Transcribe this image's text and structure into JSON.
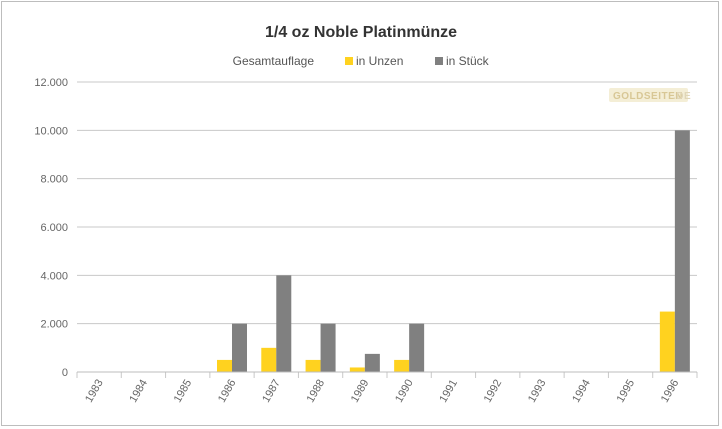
{
  "chart_data": {
    "type": "bar",
    "title": "1/4 oz Noble Platinmünze",
    "legend": {
      "title": "Gesamtauflage",
      "placement": "top"
    },
    "categories": [
      "1983",
      "1984",
      "1985",
      "1986",
      "1987",
      "1988",
      "1989",
      "1990",
      "1991",
      "1992",
      "1993",
      "1994",
      "1995",
      "1996"
    ],
    "series": [
      {
        "name": "in Unzen",
        "color": "#ffd21f",
        "values": [
          0,
          0,
          0,
          500,
          1000,
          500,
          187.5,
          500,
          0,
          0,
          0,
          0,
          0,
          2500
        ]
      },
      {
        "name": "in Stück",
        "color": "#808080",
        "values": [
          0,
          0,
          0,
          2000,
          4000,
          2000,
          750,
          2000,
          0,
          0,
          0,
          0,
          0,
          10000
        ]
      }
    ],
    "yticks": [
      "0",
      "2.000",
      "4.000",
      "6.000",
      "8.000",
      "10.000",
      "12.000"
    ],
    "ylim": [
      0,
      12000
    ],
    "grid": true,
    "xlabel": "",
    "ylabel": ""
  },
  "watermark": {
    "text_a": "GOLDSEITEN",
    "text_b": ".DE"
  }
}
